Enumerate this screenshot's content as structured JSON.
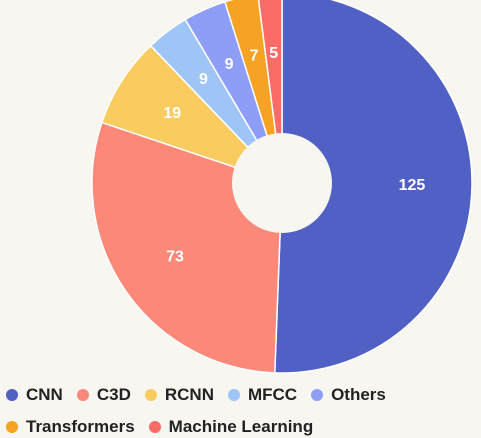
{
  "chart_data": {
    "type": "pie",
    "donut": true,
    "title": "",
    "series": [
      {
        "name": "CNN",
        "value": 125,
        "color": "#5160c4"
      },
      {
        "name": "C3D",
        "value": 73,
        "color": "#fb8878"
      },
      {
        "name": "RCNN",
        "value": 19,
        "color": "#facb5e"
      },
      {
        "name": "MFCC",
        "value": 9,
        "color": "#9ec5f5"
      },
      {
        "name": "Others",
        "value": 9,
        "color": "#8e9ef6"
      },
      {
        "name": "Transformers",
        "value": 7,
        "color": "#f6a224"
      },
      {
        "name": "Machine Learning",
        "value": 5,
        "color": "#fb6c66"
      }
    ],
    "legend_position": "bottom-left"
  }
}
